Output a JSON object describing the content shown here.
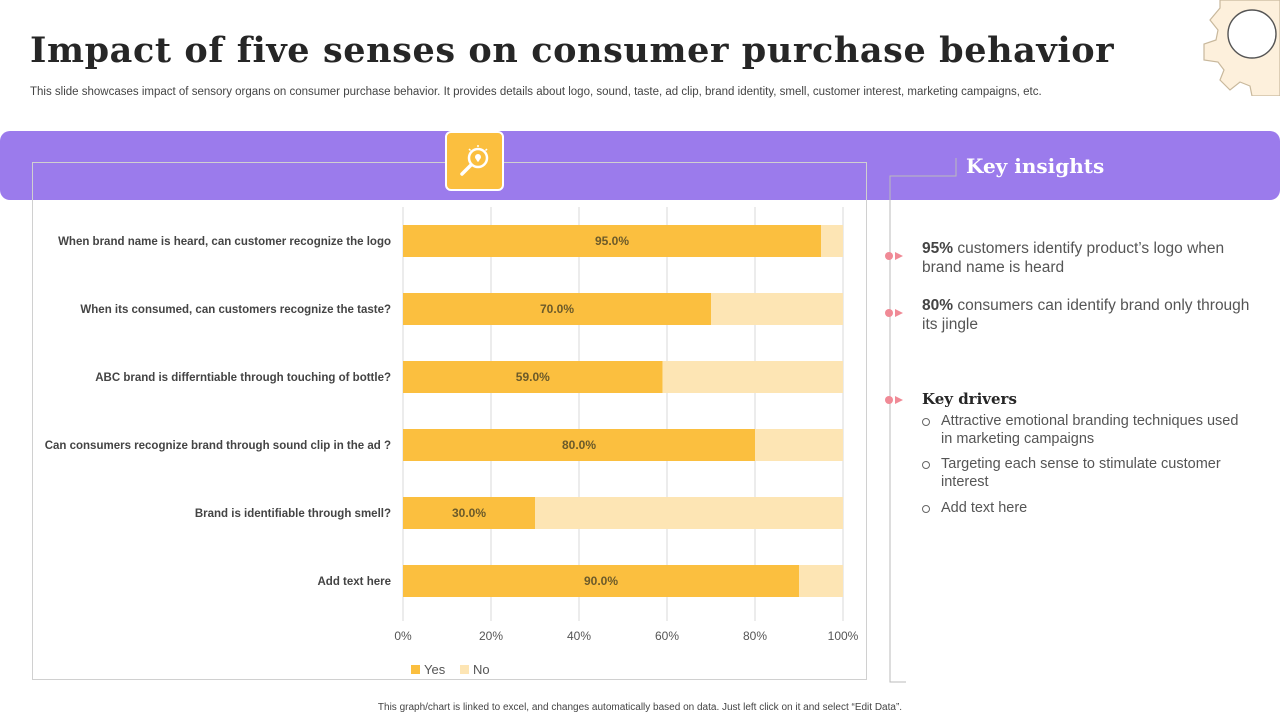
{
  "header": {
    "title": "Impact of five senses on consumer purchase behavior",
    "subtitle": "This slide showcases impact of sensory organs on consumer purchase behavior. It provides details about logo, sound, taste, ad clip, brand identity, smell, customer interest, marketing campaigns, etc."
  },
  "insights": {
    "title": "Key insights",
    "items": [
      {
        "value": "95%",
        "text": " customers identify product’s logo when brand name is heard"
      },
      {
        "value": "80%",
        "text": " consumers can identify brand only through its jingle"
      }
    ],
    "drivers_title": "Key drivers",
    "drivers": [
      "Attractive emotional branding techniques used in marketing campaigns",
      "Targeting each sense to stimulate customer interest",
      "Add text here"
    ]
  },
  "footer": "This graph/chart is linked to excel, and changes automatically based on data. Just left click on it and select “Edit Data”.",
  "colors": {
    "banner": "#9b7bec",
    "yes": "#fbbf3f",
    "no": "#fde5b4",
    "marker": "#f08a96"
  },
  "chart_data": {
    "type": "bar",
    "orientation": "horizontal",
    "stacked": true,
    "categories": [
      "When brand name is heard, can customer recognize the logo",
      "When its consumed, can customers recognize the taste?",
      "ABC brand is differntiable through touching of bottle?",
      "Can consumers recognize brand through sound clip in the ad ?",
      "Brand is identifiable through smell?",
      "Add text here"
    ],
    "series": [
      {
        "name": "Yes",
        "values": [
          95,
          70,
          59,
          80,
          30,
          90
        ],
        "labels": [
          "95.0%",
          "70.0%",
          "59.0%",
          "80.0%",
          "30.0%",
          "90.0%"
        ]
      },
      {
        "name": "No",
        "values": [
          5,
          30,
          41,
          20,
          70,
          10
        ]
      }
    ],
    "xlim": [
      0,
      100
    ],
    "xticks": [
      "0%",
      "20%",
      "40%",
      "60%",
      "80%",
      "100%"
    ],
    "legend": "bottom",
    "grid": true
  }
}
